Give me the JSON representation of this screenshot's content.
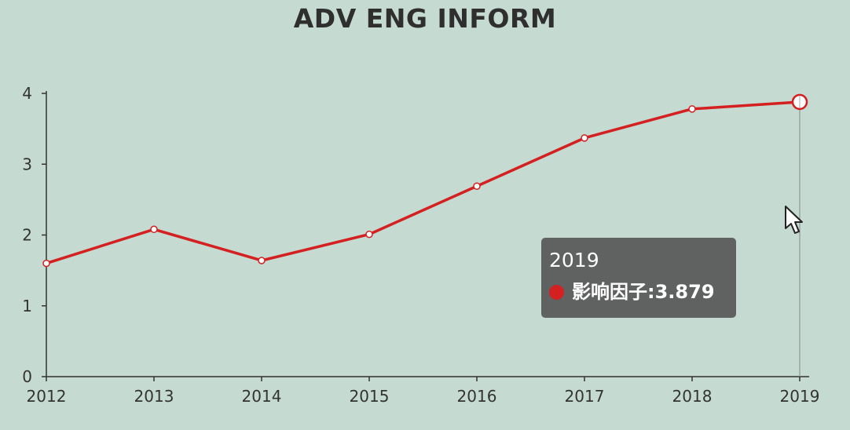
{
  "chart_data": {
    "type": "line",
    "title": "ADV ENG INFORM",
    "categories": [
      "2012",
      "2013",
      "2014",
      "2015",
      "2016",
      "2017",
      "2018",
      "2019"
    ],
    "series": [
      {
        "name": "影响因子",
        "values": [
          1.6,
          2.08,
          1.64,
          2.01,
          2.69,
          3.37,
          3.78,
          3.879
        ]
      }
    ],
    "ylim": [
      0,
      4
    ],
    "yticks": [
      0,
      1,
      2,
      3,
      4
    ],
    "grid": false,
    "line_color": "#d42020"
  },
  "tooltip": {
    "title": "2019",
    "series_name": "影响因子",
    "separator": ": ",
    "value": "3.879",
    "marker_color": "#d42020"
  },
  "cursor_icon": "arrow-pointer-icon"
}
